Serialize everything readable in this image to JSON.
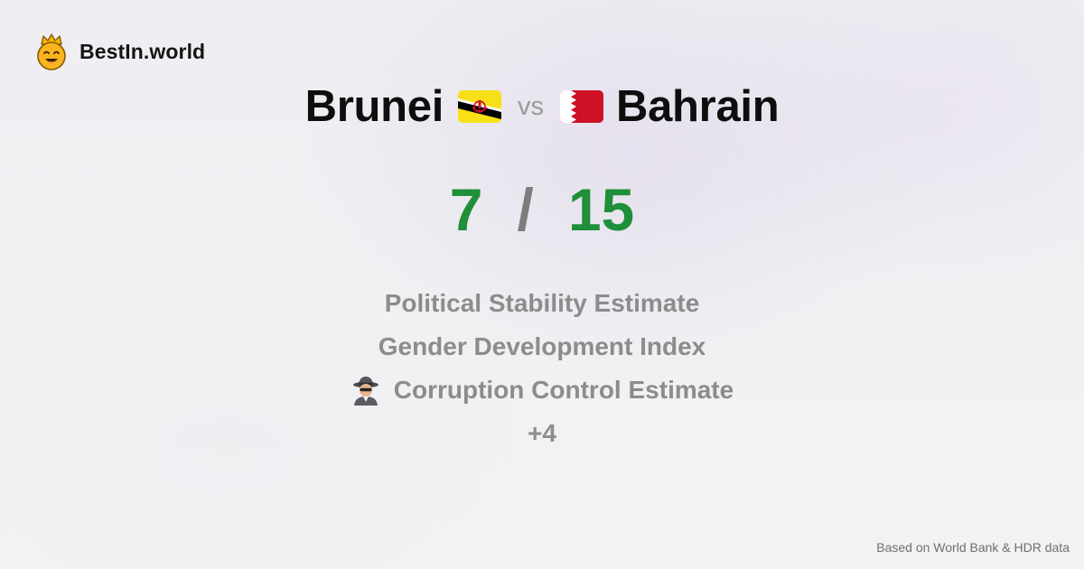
{
  "brand": {
    "name": "BestIn.world",
    "logo_icon": "smiling-crown-face-icon"
  },
  "comparison": {
    "country_a": "Brunei",
    "country_a_flag_icon": "brunei-flag-icon",
    "vs_label": "vs",
    "country_b": "Bahrain",
    "country_b_flag_icon": "bahrain-flag-icon"
  },
  "score": {
    "a": "7",
    "separator": "/",
    "b": "15"
  },
  "metrics": [
    {
      "label": "Political Stability Estimate",
      "icon": ""
    },
    {
      "label": "Gender Development Index",
      "icon": ""
    },
    {
      "label": "Corruption Control Estimate",
      "icon": "detective-icon"
    }
  ],
  "more_label": "+4",
  "footer": {
    "source": "Based on World Bank & HDR data"
  },
  "colors": {
    "score_green": "#1f8f3a",
    "muted_gray": "#8c8c8c",
    "bahrain_red": "#ce1126",
    "brunei_yellow": "#f7e017"
  }
}
